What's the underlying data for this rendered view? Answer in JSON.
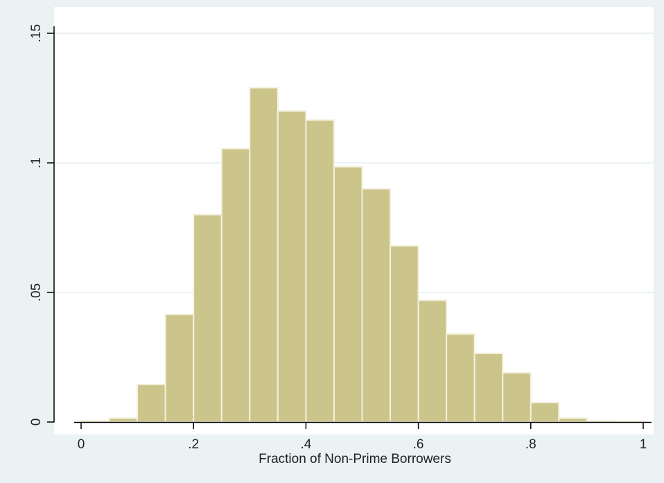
{
  "chart_data": {
    "type": "bar",
    "title": "",
    "xlabel": "Fraction of Non-Prime Borrowers",
    "ylabel": "",
    "xlim": [
      0,
      1
    ],
    "ylim": [
      0,
      0.15
    ],
    "bin_width": 0.05,
    "bins": [
      {
        "x0": 0.0,
        "x1": 0.05,
        "value": 0.0005
      },
      {
        "x0": 0.05,
        "x1": 0.1,
        "value": 0.0015
      },
      {
        "x0": 0.1,
        "x1": 0.15,
        "value": 0.0145
      },
      {
        "x0": 0.15,
        "x1": 0.2,
        "value": 0.0415
      },
      {
        "x0": 0.2,
        "x1": 0.25,
        "value": 0.08
      },
      {
        "x0": 0.25,
        "x1": 0.3,
        "value": 0.1055
      },
      {
        "x0": 0.3,
        "x1": 0.35,
        "value": 0.129
      },
      {
        "x0": 0.35,
        "x1": 0.4,
        "value": 0.12
      },
      {
        "x0": 0.4,
        "x1": 0.45,
        "value": 0.1165
      },
      {
        "x0": 0.45,
        "x1": 0.5,
        "value": 0.0985
      },
      {
        "x0": 0.5,
        "x1": 0.55,
        "value": 0.09
      },
      {
        "x0": 0.55,
        "x1": 0.6,
        "value": 0.068
      },
      {
        "x0": 0.6,
        "x1": 0.65,
        "value": 0.047
      },
      {
        "x0": 0.65,
        "x1": 0.7,
        "value": 0.034
      },
      {
        "x0": 0.7,
        "x1": 0.75,
        "value": 0.0265
      },
      {
        "x0": 0.75,
        "x1": 0.8,
        "value": 0.019
      },
      {
        "x0": 0.8,
        "x1": 0.85,
        "value": 0.0075
      },
      {
        "x0": 0.85,
        "x1": 0.9,
        "value": 0.0015
      },
      {
        "x0": 0.9,
        "x1": 0.95,
        "value": 0.0005
      },
      {
        "x0": 0.95,
        "x1": 1.0,
        "value": 0.0003
      }
    ],
    "x_ticks": [
      {
        "value": 0,
        "label": "0"
      },
      {
        "value": 0.2,
        "label": ".2"
      },
      {
        "value": 0.4,
        "label": ".4"
      },
      {
        "value": 0.6,
        "label": ".6"
      },
      {
        "value": 0.8,
        "label": ".8"
      },
      {
        "value": 1,
        "label": "1"
      }
    ],
    "y_ticks": [
      {
        "value": 0,
        "label": "0"
      },
      {
        "value": 0.05,
        "label": ".05"
      },
      {
        "value": 0.1,
        "label": ".1"
      },
      {
        "value": 0.15,
        "label": ".15"
      }
    ],
    "grid": true,
    "legend": "none",
    "colors": {
      "bar_fill": "#cbc58c",
      "bar_stroke": "#f3f1dc",
      "plot_background": "#ffffff",
      "outer_background": "#eaf2f3",
      "grid": "#e6eeee",
      "axis": "#000000"
    }
  }
}
